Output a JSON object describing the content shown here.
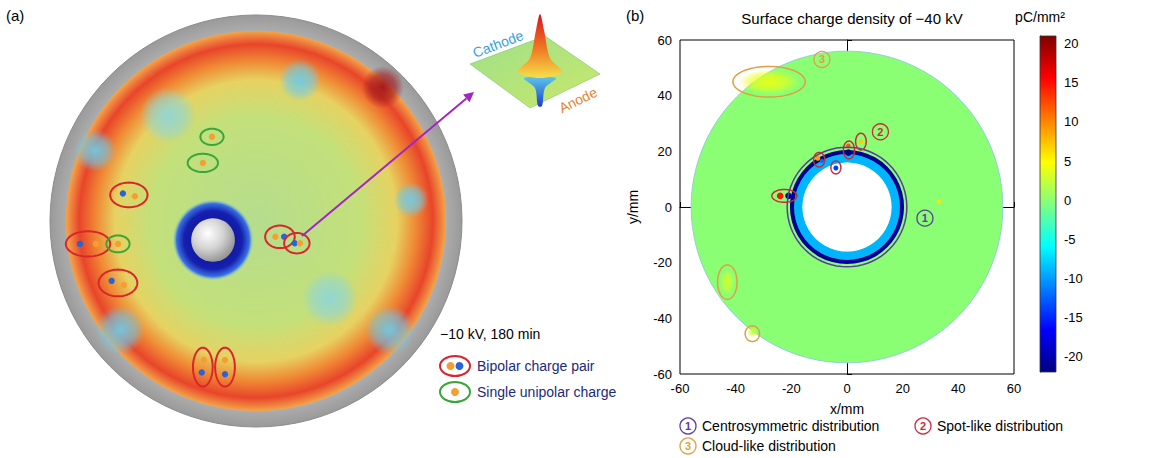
{
  "chart_data": [
    {
      "type": "charge_map_sketch",
      "panel": "(a)",
      "tick_labels": false,
      "annotation": "−10 kV, 180 min",
      "inset_labels": [
        "Cathode",
        "Anode"
      ],
      "disk": {
        "center": [
          0,
          0
        ],
        "outer_radius": 58.5,
        "map_radius": 54
      },
      "center_blob": {
        "x": -12.2,
        "y": -5.4,
        "r": 11.5,
        "electrode_radius": 6.2
      },
      "blobs": [
        {
          "x": -38.6,
          "y": -31,
          "r": 7,
          "color": "#6fcbe6"
        },
        {
          "x": 38,
          "y": -31,
          "r": 7,
          "color": "#6fcbe6"
        },
        {
          "x": -45.7,
          "y": 20,
          "r": 6,
          "color": "#6fcbe6"
        },
        {
          "x": 12.5,
          "y": 40,
          "r": 6,
          "color": "#6fcbe6"
        },
        {
          "x": 44,
          "y": 6,
          "r": 5,
          "color": "#6fcbe6"
        },
        {
          "x": 36,
          "y": 38,
          "r": 6,
          "color": "#a3161a"
        },
        {
          "x": 21,
          "y": -22,
          "r": 8,
          "color": "#8fd6d6"
        },
        {
          "x": -25,
          "y": 30,
          "r": 8,
          "color": "#8fd6d6"
        }
      ],
      "legend_items": [
        {
          "kind": "bipolar",
          "label": "Bipolar charge pair",
          "color": "#d8262c",
          "spot_colors": [
            "#f4a030",
            "#2b62d6"
          ]
        },
        {
          "kind": "unipolar",
          "label": "Single unipolar charge",
          "color": "#3aa63a",
          "spot_colors": [
            "#f4a030"
          ]
        }
      ],
      "marks": [
        {
          "kind": "bipolar",
          "x": -47.7,
          "y": -6.5,
          "rx": 6.3,
          "ry": 3.6,
          "spots": [
            {
              "x": -50,
              "y": -6.5,
              "color": "#2b62d6"
            },
            {
              "x": -45.5,
              "y": -6.5,
              "color": "#f4a030"
            }
          ]
        },
        {
          "kind": "unipolar",
          "x": -39.2,
          "y": -6.5,
          "rx": 3.3,
          "ry": 2.4,
          "spots": [
            {
              "x": -39.2,
              "y": -6.5,
              "color": "#f4a030"
            }
          ]
        },
        {
          "kind": "bipolar",
          "x": -36.1,
          "y": 7.4,
          "rx": 5.3,
          "ry": 3.5,
          "spots": [
            {
              "x": -37.8,
              "y": 7.8,
              "color": "#2b62d6"
            },
            {
              "x": -34.4,
              "y": 7,
              "color": "#f4a030"
            }
          ]
        },
        {
          "kind": "unipolar",
          "x": -12.5,
          "y": 23.9,
          "rx": 3.3,
          "ry": 2.3,
          "spots": [
            {
              "x": -12.5,
              "y": 23.9,
              "color": "#f4a030"
            }
          ]
        },
        {
          "kind": "unipolar",
          "x": -15.1,
          "y": 16.5,
          "rx": 4.3,
          "ry": 2.6,
          "spots": [
            {
              "x": -15.1,
              "y": 16.5,
              "color": "#f4a030"
            }
          ]
        },
        {
          "kind": "bipolar",
          "x": -39.2,
          "y": -17.6,
          "rx": 5.5,
          "ry": 3.8,
          "spots": [
            {
              "x": -41,
              "y": -17,
              "color": "#2b62d6"
            },
            {
              "x": -37.5,
              "y": -18.2,
              "color": "#f4a030"
            }
          ]
        },
        {
          "kind": "bipolar",
          "x": -15.1,
          "y": -41.5,
          "rx": 2.8,
          "ry": 5.5,
          "spots": [
            {
              "x": -15.4,
              "y": -43,
              "color": "#2b62d6"
            },
            {
              "x": -14.8,
              "y": -39.5,
              "color": "#f4a030"
            }
          ]
        },
        {
          "kind": "bipolar",
          "x": -8.8,
          "y": -41.5,
          "rx": 2.8,
          "ry": 5.5,
          "spots": [
            {
              "x": -8.8,
              "y": -39.5,
              "color": "#f4a030"
            },
            {
              "x": -8.8,
              "y": -43.5,
              "color": "#2b62d6"
            }
          ]
        },
        {
          "kind": "bipolar",
          "x": 6.8,
          "y": -4.5,
          "rx": 4.2,
          "ry": 3.2,
          "spots": [
            {
              "x": 5.5,
              "y": -4.5,
              "color": "#f4a030"
            },
            {
              "x": 8,
              "y": -4.5,
              "color": "#2b62d6"
            }
          ]
        },
        {
          "kind": "bipolar",
          "x": 11.6,
          "y": -6.3,
          "rx": 3.6,
          "ry": 2.9,
          "spots": [
            {
              "x": 11,
              "y": -6.3,
              "color": "#2b62d6"
            },
            {
              "x": 12.5,
              "y": -6.3,
              "color": "#f4a030"
            }
          ]
        }
      ]
    },
    {
      "type": "heatmap",
      "panel": "(b)",
      "title": "Surface charge density of −40 kV",
      "x_label": "x/mm",
      "y_label": "y/mm",
      "xlim": [
        -60,
        60
      ],
      "ylim": [
        -60,
        60
      ],
      "xticks": [
        -60,
        -40,
        -20,
        0,
        20,
        40,
        60
      ],
      "yticks": [
        -60,
        -40,
        -20,
        0,
        20,
        40,
        60
      ],
      "grid": false,
      "colorbar": {
        "label": "pC/mm²",
        "range": [
          -22,
          21
        ],
        "ticks": [
          -20,
          -15,
          -10,
          -5,
          0,
          5,
          10,
          15,
          20
        ]
      },
      "disk": {
        "center": [
          0,
          0
        ],
        "radius": 56,
        "hole_radius": 16,
        "value": 0
      },
      "rings": [
        {
          "inner_radius": 16,
          "outer_radius": 19,
          "value": -9
        },
        {
          "inner_radius": 19,
          "outer_radius": 20.5,
          "value": -21
        }
      ],
      "clouds": [
        {
          "x": -28,
          "y": 45,
          "rx": 11,
          "ry": 4.5,
          "value": 4
        },
        {
          "x": -43,
          "y": -27,
          "rx": 2.5,
          "ry": 4.5,
          "value": 3
        },
        {
          "x": -34,
          "y": -45,
          "rx": 1.8,
          "ry": 1.8,
          "value": 3
        }
      ],
      "spots": [
        {
          "x": -24,
          "y": 4,
          "r": 1.2,
          "value": 15
        },
        {
          "x": -21,
          "y": 4,
          "r": 1.2,
          "value": -21
        },
        {
          "x": -10.5,
          "y": 17.5,
          "r": 0.9,
          "value": 9
        },
        {
          "x": -9,
          "y": 16.5,
          "r": 0.8,
          "value": -12
        },
        {
          "x": -4,
          "y": 14,
          "r": 0.9,
          "value": -14
        },
        {
          "x": 0.5,
          "y": 19.5,
          "r": 1.2,
          "value": -22
        },
        {
          "x": 0.5,
          "y": 22,
          "r": 0.8,
          "value": 12
        },
        {
          "x": 5,
          "y": 23.5,
          "r": 0.8,
          "value": 7
        },
        {
          "x": 33,
          "y": 2,
          "r": 0.8,
          "value": 6
        }
      ],
      "annotations": [
        {
          "id": "1",
          "label": "Centrosymmetric distribution",
          "color": "#5a3d9e",
          "tag": [
            28,
            -4
          ],
          "shapes": [
            {
              "x": 0,
              "y": 0,
              "rx": 21.5,
              "ry": 21.5
            }
          ]
        },
        {
          "id": "2",
          "label": "Spot-like distribution",
          "color": "#cc2a3a",
          "tag": [
            12,
            27
          ],
          "shapes": [
            {
              "x": -22.5,
              "y": 4,
              "rx": 4.5,
              "ry": 2.3
            },
            {
              "x": -10,
              "y": 17,
              "rx": 2,
              "ry": 2.6
            },
            {
              "x": -4,
              "y": 14.2,
              "rx": 1.8,
              "ry": 2.3
            },
            {
              "x": 0.7,
              "y": 20.5,
              "rx": 2,
              "ry": 3.2
            },
            {
              "x": 5,
              "y": 23.5,
              "rx": 1.9,
              "ry": 3
            }
          ]
        },
        {
          "id": "3",
          "label": "Cloud-like distribution",
          "color": "#e0a040",
          "tag": [
            -9,
            53
          ],
          "shapes": [
            {
              "x": -28,
              "y": 45,
              "rx": 13,
              "ry": 5.5
            },
            {
              "x": -43,
              "y": -27,
              "rx": 3.5,
              "ry": 6.2
            },
            {
              "x": -34,
              "y": -45.5,
              "rx": 2.6,
              "ry": 2.8
            }
          ]
        }
      ]
    }
  ]
}
